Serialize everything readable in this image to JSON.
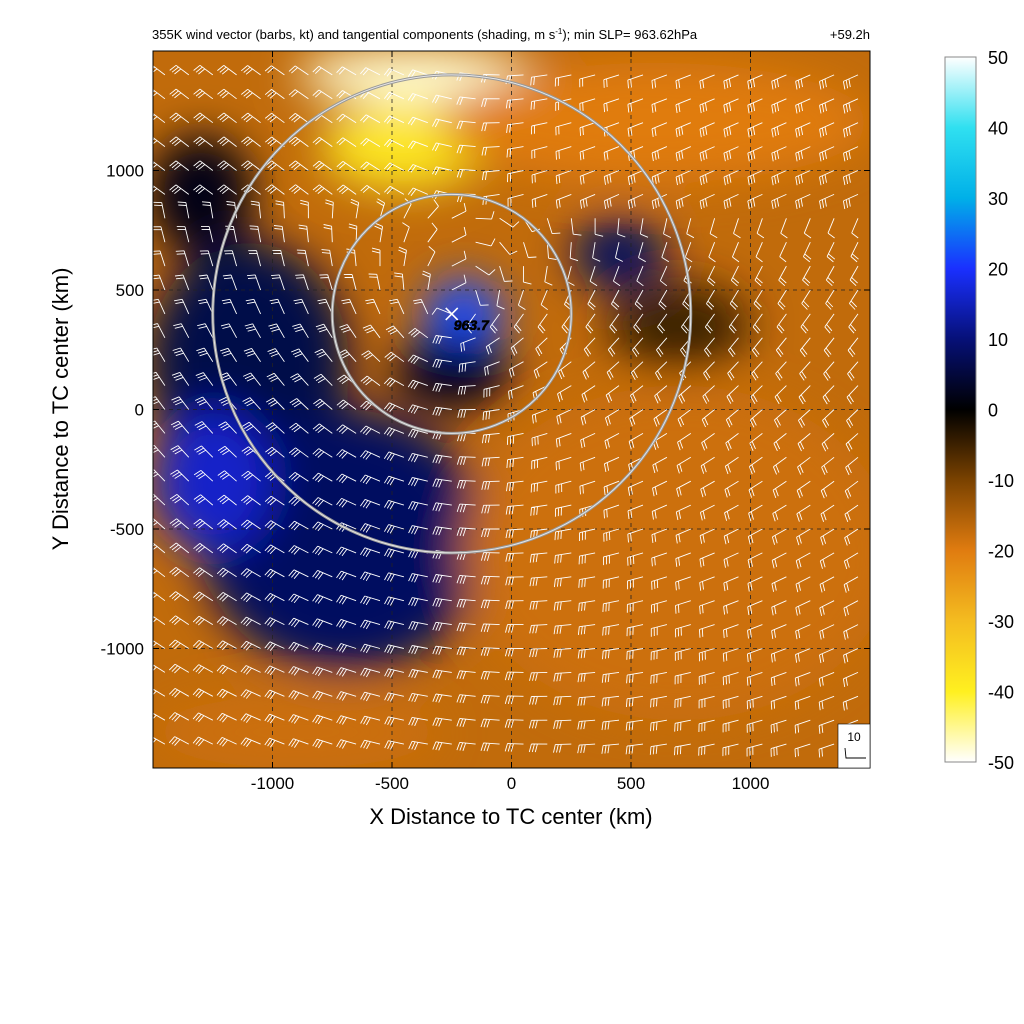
{
  "chart_data": {
    "type": "heatmap",
    "title_parts": {
      "main": "355K wind vector (barbs, kt) and tangential components (shading, m s",
      "exponent": "-1",
      "tail": "); min SLP= 963.62hPa",
      "forecast_hour": "+59.2h"
    },
    "xlabel": "X Distance to TC center (km)",
    "ylabel": "Y Distance to TC center (km)",
    "xlim": [
      -1500,
      1500
    ],
    "ylim": [
      -1500,
      1500
    ],
    "x_ticks": [
      -1000,
      -500,
      0,
      500,
      1000
    ],
    "y_ticks": [
      -1000,
      -500,
      0,
      500,
      1000
    ],
    "x_tick_labels": [
      "-1000",
      "-500",
      "0",
      "500",
      "1000"
    ],
    "y_tick_labels": [
      "-1000",
      "-500",
      "0",
      "500",
      "1000"
    ],
    "grid": "dashed",
    "colorbar": {
      "range": [
        -50,
        50
      ],
      "ticks": [
        "50",
        "40",
        "30",
        "20",
        "10",
        "0",
        "-10",
        "-20",
        "-30",
        "-40",
        "-50"
      ],
      "stops": [
        {
          "v": 50,
          "color": "#ffffff"
        },
        {
          "v": 40,
          "color": "#30e0f0"
        },
        {
          "v": 30,
          "color": "#00b0e8"
        },
        {
          "v": 20,
          "color": "#1a30ff"
        },
        {
          "v": 10,
          "color": "#061078"
        },
        {
          "v": 0,
          "color": "#000000"
        },
        {
          "v": -10,
          "color": "#7a4200"
        },
        {
          "v": -20,
          "color": "#e07c10"
        },
        {
          "v": -30,
          "color": "#f4bc20"
        },
        {
          "v": -40,
          "color": "#fff020"
        },
        {
          "v": -50,
          "color": "#ffffff"
        }
      ]
    },
    "center": {
      "x": -250,
      "y": 400,
      "label": "963.7"
    },
    "rings_km": [
      500,
      1000
    ],
    "barb_reference": {
      "label": "10"
    },
    "shading_features": [
      {
        "x": -400,
        "y": 1400,
        "rx": 500,
        "ry": 120,
        "value": -48
      },
      {
        "x": -450,
        "y": 1100,
        "rx": 350,
        "ry": 180,
        "value": -38
      },
      {
        "x": 600,
        "y": 1200,
        "rx": 900,
        "ry": 250,
        "value": -20
      },
      {
        "x": -200,
        "y": 400,
        "rx": 170,
        "ry": 150,
        "value": 22
      },
      {
        "x": 450,
        "y": 650,
        "rx": 200,
        "ry": 150,
        "value": 8
      },
      {
        "x": -1100,
        "y": 200,
        "rx": 420,
        "ry": 500,
        "value": 6
      },
      {
        "x": -700,
        "y": -550,
        "rx": 600,
        "ry": 550,
        "value": 8
      },
      {
        "x": -1250,
        "y": -300,
        "rx": 250,
        "ry": 300,
        "value": 16
      },
      {
        "x": -250,
        "y": 150,
        "rx": 250,
        "ry": 150,
        "value": 3
      },
      {
        "x": 700,
        "y": 350,
        "rx": 300,
        "ry": 180,
        "value": -5
      },
      {
        "x": -1300,
        "y": 900,
        "rx": 220,
        "ry": 250,
        "value": 2
      },
      {
        "x": 700,
        "y": -600,
        "rx": 900,
        "ry": 700,
        "value": -18
      },
      {
        "x": -900,
        "y": -1350,
        "rx": 600,
        "ry": 150,
        "value": -18
      }
    ]
  }
}
